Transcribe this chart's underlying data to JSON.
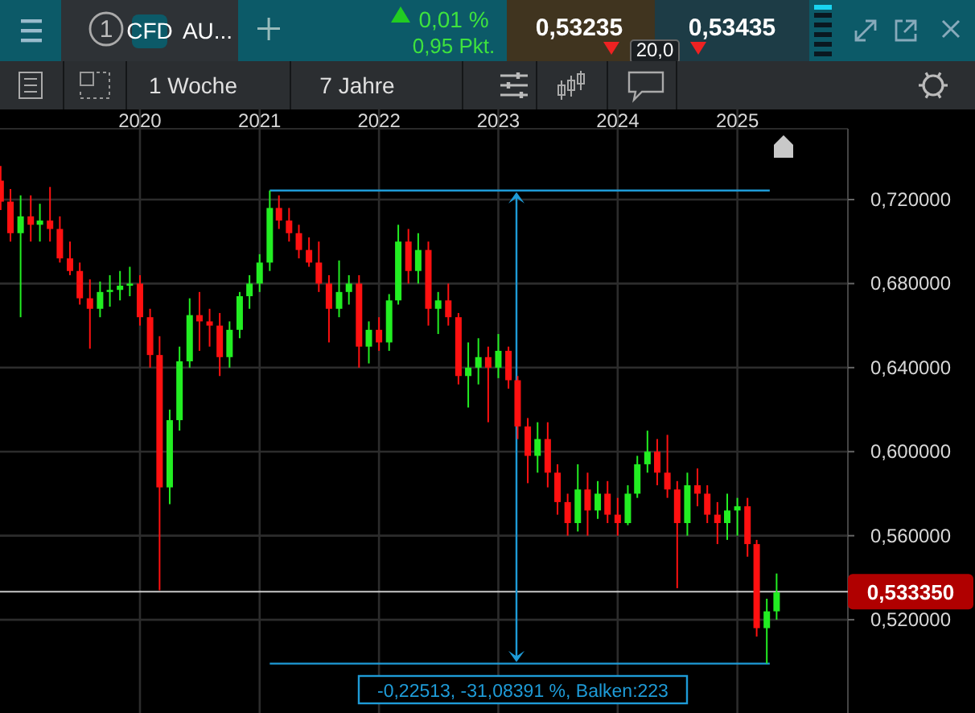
{
  "chart_data": {
    "type": "candlestick",
    "x": [
      "2018-11",
      "2018-12",
      "2019-01",
      "2019-02",
      "2019-03",
      "2019-04",
      "2019-05",
      "2019-06",
      "2019-07",
      "2019-08",
      "2019-09",
      "2019-10",
      "2019-11",
      "2019-12",
      "2020-01",
      "2020-02",
      "2020-03",
      "2020-04",
      "2020-05",
      "2020-06",
      "2020-07",
      "2020-08",
      "2020-09",
      "2020-10",
      "2020-11",
      "2020-12",
      "2021-01",
      "2021-02",
      "2021-03",
      "2021-04",
      "2021-05",
      "2021-06",
      "2021-07",
      "2021-08",
      "2021-09",
      "2021-10",
      "2021-11",
      "2021-12",
      "2022-01",
      "2022-02",
      "2022-03",
      "2022-04",
      "2022-05",
      "2022-06",
      "2022-07",
      "2022-08",
      "2022-09",
      "2022-10",
      "2022-11",
      "2022-12",
      "2023-01",
      "2023-02",
      "2023-03",
      "2023-04",
      "2023-05",
      "2023-06",
      "2023-07",
      "2023-08",
      "2023-09",
      "2023-10",
      "2023-11",
      "2023-12",
      "2024-01",
      "2024-02",
      "2024-03",
      "2024-04",
      "2024-05",
      "2024-06",
      "2024-07",
      "2024-08",
      "2024-09",
      "2024-10",
      "2024-11",
      "2024-12",
      "2025-01",
      "2025-02",
      "2025-03",
      "2025-04",
      "2025-05"
    ],
    "ohlc": [
      [
        0.729,
        0.736,
        0.715,
        0.719
      ],
      [
        0.719,
        0.725,
        0.7,
        0.704
      ],
      [
        0.704,
        0.722,
        0.664,
        0.712
      ],
      [
        0.712,
        0.722,
        0.7,
        0.708
      ],
      [
        0.708,
        0.718,
        0.7,
        0.71
      ],
      [
        0.71,
        0.726,
        0.7,
        0.706
      ],
      [
        0.706,
        0.712,
        0.69,
        0.692
      ],
      [
        0.692,
        0.7,
        0.684,
        0.686
      ],
      [
        0.686,
        0.69,
        0.67,
        0.673
      ],
      [
        0.673,
        0.682,
        0.649,
        0.668
      ],
      [
        0.668,
        0.681,
        0.664,
        0.676
      ],
      [
        0.676,
        0.684,
        0.669,
        0.677
      ],
      [
        0.677,
        0.686,
        0.672,
        0.679
      ],
      [
        0.679,
        0.688,
        0.674,
        0.68
      ],
      [
        0.68,
        0.684,
        0.66,
        0.664
      ],
      [
        0.664,
        0.668,
        0.64,
        0.646
      ],
      [
        0.646,
        0.655,
        0.534,
        0.583
      ],
      [
        0.583,
        0.62,
        0.575,
        0.615
      ],
      [
        0.615,
        0.65,
        0.61,
        0.643
      ],
      [
        0.643,
        0.673,
        0.64,
        0.665
      ],
      [
        0.665,
        0.676,
        0.648,
        0.662
      ],
      [
        0.662,
        0.668,
        0.65,
        0.66
      ],
      [
        0.66,
        0.666,
        0.636,
        0.645
      ],
      [
        0.645,
        0.662,
        0.64,
        0.658
      ],
      [
        0.658,
        0.676,
        0.654,
        0.674
      ],
      [
        0.674,
        0.684,
        0.668,
        0.68
      ],
      [
        0.68,
        0.694,
        0.676,
        0.69
      ],
      [
        0.69,
        0.7243,
        0.686,
        0.716
      ],
      [
        0.716,
        0.722,
        0.706,
        0.71
      ],
      [
        0.71,
        0.716,
        0.7,
        0.704
      ],
      [
        0.704,
        0.708,
        0.692,
        0.696
      ],
      [
        0.696,
        0.702,
        0.688,
        0.69
      ],
      [
        0.69,
        0.7,
        0.676,
        0.68
      ],
      [
        0.68,
        0.684,
        0.652,
        0.668
      ],
      [
        0.668,
        0.691,
        0.664,
        0.676
      ],
      [
        0.676,
        0.684,
        0.67,
        0.68
      ],
      [
        0.68,
        0.684,
        0.64,
        0.65
      ],
      [
        0.65,
        0.662,
        0.642,
        0.658
      ],
      [
        0.658,
        0.664,
        0.648,
        0.652
      ],
      [
        0.652,
        0.675,
        0.648,
        0.672
      ],
      [
        0.672,
        0.708,
        0.67,
        0.7
      ],
      [
        0.7,
        0.706,
        0.68,
        0.686
      ],
      [
        0.686,
        0.704,
        0.68,
        0.696
      ],
      [
        0.696,
        0.7,
        0.66,
        0.668
      ],
      [
        0.668,
        0.676,
        0.656,
        0.672
      ],
      [
        0.672,
        0.68,
        0.66,
        0.664
      ],
      [
        0.664,
        0.666,
        0.632,
        0.636
      ],
      [
        0.636,
        0.652,
        0.621,
        0.64
      ],
      [
        0.64,
        0.654,
        0.632,
        0.645
      ],
      [
        0.645,
        0.65,
        0.614,
        0.64
      ],
      [
        0.64,
        0.656,
        0.635,
        0.648
      ],
      [
        0.648,
        0.65,
        0.63,
        0.634
      ],
      [
        0.634,
        0.636,
        0.606,
        0.612
      ],
      [
        0.612,
        0.616,
        0.585,
        0.598
      ],
      [
        0.598,
        0.614,
        0.59,
        0.606
      ],
      [
        0.606,
        0.614,
        0.583,
        0.59
      ],
      [
        0.59,
        0.594,
        0.57,
        0.576
      ],
      [
        0.576,
        0.58,
        0.56,
        0.566
      ],
      [
        0.566,
        0.594,
        0.562,
        0.582
      ],
      [
        0.582,
        0.59,
        0.56,
        0.572
      ],
      [
        0.572,
        0.586,
        0.568,
        0.58
      ],
      [
        0.58,
        0.586,
        0.566,
        0.57
      ],
      [
        0.57,
        0.578,
        0.56,
        0.566
      ],
      [
        0.566,
        0.584,
        0.565,
        0.58
      ],
      [
        0.58,
        0.598,
        0.578,
        0.594
      ],
      [
        0.594,
        0.61,
        0.59,
        0.6
      ],
      [
        0.6,
        0.606,
        0.584,
        0.59
      ],
      [
        0.59,
        0.608,
        0.578,
        0.582
      ],
      [
        0.582,
        0.586,
        0.535,
        0.566
      ],
      [
        0.566,
        0.59,
        0.56,
        0.584
      ],
      [
        0.584,
        0.592,
        0.574,
        0.58
      ],
      [
        0.58,
        0.584,
        0.566,
        0.57
      ],
      [
        0.57,
        0.576,
        0.556,
        0.566
      ],
      [
        0.566,
        0.58,
        0.558,
        0.572
      ],
      [
        0.572,
        0.578,
        0.56,
        0.574
      ],
      [
        0.574,
        0.578,
        0.55,
        0.556
      ],
      [
        0.556,
        0.558,
        0.512,
        0.516
      ],
      [
        0.516,
        0.53,
        0.4991,
        0.524
      ],
      [
        0.524,
        0.542,
        0.52,
        0.533
      ]
    ],
    "colors": [
      "#ff1010",
      "#ff1010",
      "#22ee22",
      "#ff1010",
      "#22ee22",
      "#ff1010",
      "#ff1010",
      "#ff1010",
      "#ff1010",
      "#ff1010",
      "#22ee22",
      "#22ee22",
      "#22ee22",
      "#22ee22",
      "#ff1010",
      "#ff1010",
      "#ff1010",
      "#22ee22",
      "#22ee22",
      "#22ee22",
      "#ff1010",
      "#ff1010",
      "#ff1010",
      "#22ee22",
      "#22ee22",
      "#22ee22",
      "#22ee22",
      "#22ee22",
      "#ff1010",
      "#ff1010",
      "#ff1010",
      "#ff1010",
      "#ff1010",
      "#ff1010",
      "#22ee22",
      "#22ee22",
      "#ff1010",
      "#22ee22",
      "#ff1010",
      "#22ee22",
      "#22ee22",
      "#ff1010",
      "#22ee22",
      "#ff1010",
      "#22ee22",
      "#ff1010",
      "#ff1010",
      "#22ee22",
      "#22ee22",
      "#ff1010",
      "#22ee22",
      "#ff1010",
      "#ff1010",
      "#ff1010",
      "#22ee22",
      "#ff1010",
      "#ff1010",
      "#ff1010",
      "#22ee22",
      "#ff1010",
      "#22ee22",
      "#ff1010",
      "#ff1010",
      "#22ee22",
      "#22ee22",
      "#22ee22",
      "#ff1010",
      "#ff1010",
      "#ff1010",
      "#22ee22",
      "#ff1010",
      "#ff1010",
      "#ff1010",
      "#22ee22",
      "#22ee22",
      "#ff1010",
      "#ff1010",
      "#22ee22",
      "#22ee22"
    ],
    "series": [
      {
        "type": "line",
        "color": "#1e9bd7",
        "x": [
          "2021-02-01",
          "2025-04-10"
        ],
        "values": [
          0.7243,
          0.7243
        ]
      },
      {
        "type": "line",
        "color": "#1e9bd7",
        "x": [
          "2021-02-01",
          "2025-04-10"
        ],
        "values": [
          0.4991,
          0.4991
        ]
      }
    ],
    "xlim": [
      "2018-10-30",
      "2025-12-05"
    ],
    "xticks": [
      {
        "value": "2020-01-01",
        "label": "2020"
      },
      {
        "value": "2021-01-01",
        "label": "2021"
      },
      {
        "value": "2022-01-01",
        "label": "2022"
      },
      {
        "value": "2023-01-01",
        "label": "2023"
      },
      {
        "value": "2024-01-01",
        "label": "2024"
      },
      {
        "value": "2025-01-01",
        "label": "2025"
      }
    ],
    "ylim": [
      0.4756,
      0.7537
    ],
    "yticks": [
      {
        "value": 0.52,
        "label": "0,520000"
      },
      {
        "value": 0.56,
        "label": "0,560000"
      },
      {
        "value": 0.6,
        "label": "0,600000"
      },
      {
        "value": 0.64,
        "label": "0,640000"
      },
      {
        "value": 0.68,
        "label": "0,680000"
      },
      {
        "value": 0.72,
        "label": "0,720000"
      }
    ],
    "grid": true,
    "ref_lines": [
      {
        "axis": "y",
        "value": 0.53335,
        "label": "0,533350",
        "color": "#c8c8c8"
      }
    ],
    "annotations": [
      "1",
      "CFD",
      "AU...",
      "0,01 %",
      "0,95 Pkt.",
      "0,53235",
      "0,53435",
      "20,0",
      "1 Woche",
      "7 Jahre",
      "-0,22513, -31,08391 %, Balken:223"
    ]
  }
}
